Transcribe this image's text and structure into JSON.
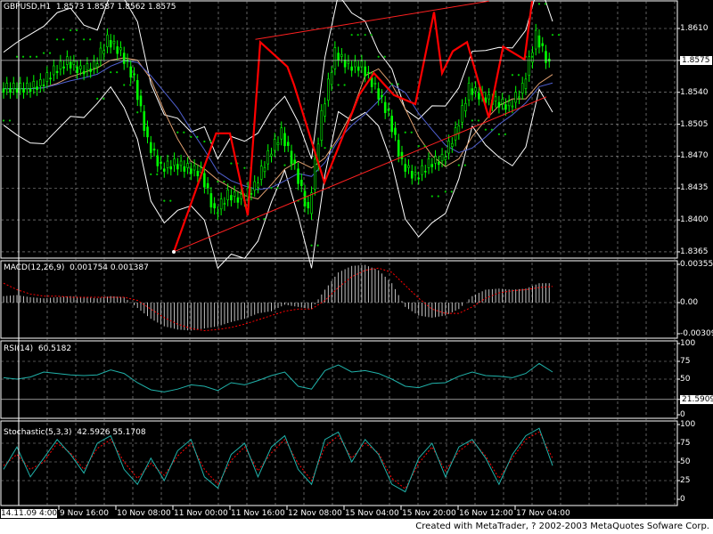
{
  "chart_data": [
    {
      "type": "candlestick",
      "title": "GBPUSD,H1",
      "ohlc": {
        "open": "1.8573",
        "high": "1.8587",
        "low": "1.8562",
        "close": "1.8575"
      },
      "ylim": [
        1.8355,
        1.864
      ],
      "yticks": [
        "1.8610",
        "1.8540",
        "1.8505",
        "1.8470",
        "1.8435",
        "1.8400",
        "1.8365"
      ],
      "current_price": "1.8575",
      "close": [
        1.8544,
        1.8544,
        1.8544,
        1.8548,
        1.8563,
        1.8573,
        1.8563,
        1.8568,
        1.8597,
        1.8583,
        1.8553,
        1.8485,
        1.8456,
        1.8461,
        1.8456,
        1.8451,
        1.8407,
        1.8427,
        1.8422,
        1.8436,
        1.847,
        1.8495,
        1.8456,
        1.8407,
        1.8514,
        1.8583,
        1.8568,
        1.8568,
        1.8544,
        1.8514,
        1.8461,
        1.8446,
        1.8461,
        1.8466,
        1.8495,
        1.8544,
        1.8534,
        1.8529,
        1.8524,
        1.8544,
        1.8602,
        1.8568
      ],
      "zigzag": [
        [
          0.39,
          1.8365
        ],
        [
          0.485,
          1.8495
        ],
        [
          0.516,
          1.8495
        ],
        [
          0.556,
          1.8405
        ],
        [
          0.584,
          1.8595
        ],
        [
          0.645,
          1.8568
        ],
        [
          0.66,
          1.8548
        ],
        [
          0.728,
          1.8441
        ],
        [
          0.806,
          1.8537
        ],
        [
          0.839,
          1.8561
        ],
        [
          0.884,
          1.8537
        ],
        [
          0.932,
          1.8527
        ],
        [
          0.974,
          1.8628
        ],
        [
          0.992,
          1.8561
        ],
        [
          1.016,
          1.8585
        ],
        [
          1.048,
          1.8595
        ],
        [
          1.097,
          1.8512
        ],
        [
          1.129,
          1.859
        ],
        [
          1.177,
          1.8576
        ],
        [
          1.194,
          1.864
        ]
      ],
      "channel_upper": [
        [
          0.573,
          1.8598
        ],
        [
          1.097,
          1.864
        ]
      ],
      "channel_lower": [
        [
          0.39,
          1.8365
        ],
        [
          1.226,
          1.8535
        ]
      ]
    },
    {
      "type": "bar",
      "title": "MACD(12,26,9)",
      "values_label": [
        "0.001754",
        "0.001387"
      ],
      "ylim": [
        -0.00309,
        0.00355
      ],
      "yticks": [
        "0.00355",
        "0.00",
        "-0.00309"
      ],
      "histogram": [
        0.0006,
        0.0007,
        0.0005,
        0.0004,
        0.0005,
        0.0006,
        0.0005,
        0.0004,
        0.0006,
        0.0005,
        -0.0005,
        -0.0015,
        -0.0022,
        -0.0025,
        -0.0026,
        -0.0024,
        -0.0022,
        -0.0018,
        -0.0015,
        -0.001,
        -0.0008,
        -0.0002,
        -0.0004,
        -0.0006,
        0.0012,
        0.0028,
        0.0034,
        0.0035,
        0.003,
        0.0018,
        -0.0004,
        -0.0012,
        -0.0014,
        -0.0012,
        -0.0006,
        0.0006,
        0.0012,
        0.0013,
        0.0012,
        0.0013,
        0.0018,
        0.0018
      ],
      "signal": [
        0.0018,
        0.0012,
        0.0008,
        0.0006,
        0.0006,
        0.0005,
        0.0005,
        0.0005,
        0.0005,
        0.0005,
        0.0002,
        -0.0006,
        -0.0014,
        -0.002,
        -0.0024,
        -0.0026,
        -0.0025,
        -0.0023,
        -0.002,
        -0.0016,
        -0.0012,
        -0.0008,
        -0.0006,
        -0.0006,
        0.0002,
        0.0014,
        0.0024,
        0.003,
        0.0032,
        0.0028,
        0.0016,
        0.0004,
        -0.0006,
        -0.001,
        -0.001,
        -0.0004,
        0.0004,
        0.0009,
        0.0011,
        0.0012,
        0.0014,
        0.0015
      ]
    },
    {
      "type": "line",
      "title": "RSI(14)",
      "values_label": [
        "60.5182"
      ],
      "ylim": [
        0,
        100
      ],
      "yticks": [
        "100",
        "75",
        "50",
        "0"
      ],
      "level": "21.5909",
      "values": [
        52,
        50,
        53,
        60,
        58,
        56,
        55,
        56,
        63,
        58,
        45,
        35,
        32,
        36,
        42,
        40,
        34,
        45,
        42,
        48,
        55,
        60,
        40,
        36,
        62,
        70,
        60,
        62,
        58,
        50,
        40,
        38,
        44,
        45,
        54,
        60,
        55,
        54,
        52,
        58,
        72,
        60
      ]
    },
    {
      "type": "line",
      "title": "Stochastic(5,3,3)",
      "values_label": [
        "42.5926",
        "55.1708"
      ],
      "ylim": [
        0,
        100
      ],
      "yticks": [
        "100",
        "75",
        "50",
        "25",
        "0"
      ],
      "main": [
        40,
        70,
        30,
        55,
        80,
        60,
        35,
        75,
        85,
        40,
        20,
        55,
        25,
        65,
        80,
        30,
        15,
        60,
        75,
        30,
        70,
        85,
        40,
        20,
        80,
        90,
        50,
        80,
        60,
        20,
        10,
        55,
        75,
        30,
        70,
        80,
        55,
        20,
        60,
        85,
        95,
        45
      ],
      "signal": [
        45,
        60,
        40,
        50,
        75,
        62,
        40,
        68,
        80,
        50,
        28,
        48,
        32,
        58,
        75,
        40,
        20,
        52,
        70,
        38,
        62,
        80,
        48,
        25,
        70,
        85,
        55,
        75,
        62,
        28,
        14,
        48,
        70,
        38,
        64,
        78,
        58,
        28,
        55,
        80,
        90,
        55
      ]
    }
  ],
  "time_axis": [
    "14.11.09 4:00",
    "9 Nov 16:00",
    "10 Nov 08:00",
    "11 Nov 00:00",
    "11 Nov 16:00",
    "12 Nov 08:00",
    "15 Nov 04:00",
    "15 Nov 20:00",
    "16 Nov 12:00",
    "17 Nov 04:00"
  ],
  "footer": "Created with MetaTrader, ? 2002-2003 MetaQuotes Sofware Corp.",
  "colors": {
    "bars": "#00ff00",
    "zigzag": "#ff0000",
    "channel": "#ff2020",
    "bands": "#ffffff",
    "sar": "#00cc00",
    "macd_hist": "#c0c0c0",
    "macd_signal": "#ff0000",
    "rsi": "#20b2aa",
    "stoch_main": "#20b2aa",
    "stoch_signal": "#ff0000",
    "grid": "#a0a0a0"
  }
}
